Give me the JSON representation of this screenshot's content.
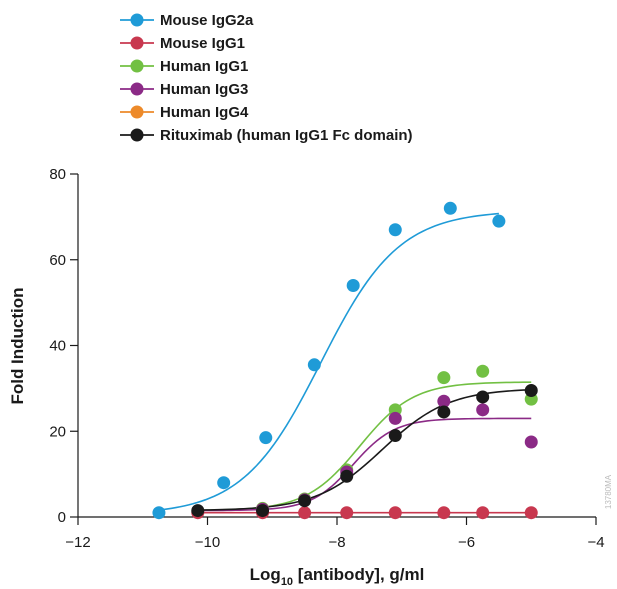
{
  "chart_data": {
    "type": "scatter",
    "xlabel": "Log",
    "xlabel_sub": "10",
    "xlabel_rest": " [antibody], g/ml",
    "ylabel": "Fold Induction",
    "xlim": [
      -12,
      -4
    ],
    "ylim": [
      0,
      80
    ],
    "xticks": [
      -12,
      -10,
      -8,
      -6,
      -4
    ],
    "xtick_labels": [
      "−12",
      "−10",
      "−8",
      "−6",
      "−4"
    ],
    "yticks": [
      0,
      20,
      40,
      60,
      80
    ],
    "ytick_labels": [
      "0",
      "20",
      "40",
      "60",
      "80"
    ],
    "grid": false,
    "legend_position": "top-left",
    "watermark": "13780MA",
    "series": [
      {
        "name": "Mouse IgG2a",
        "color": "#1f9bd7",
        "points": [
          [
            -10.75,
            1
          ],
          [
            -9.75,
            8
          ],
          [
            -9.1,
            18.5
          ],
          [
            -8.35,
            35.5
          ],
          [
            -7.75,
            54
          ],
          [
            -7.1,
            67
          ],
          [
            -6.25,
            72
          ],
          [
            -5.5,
            69
          ]
        ],
        "curve": {
          "bottom": 0.5,
          "top": 71.5,
          "log_ec50": -8.25,
          "hill": 0.72,
          "x_from": -10.75,
          "x_to": -5.5
        }
      },
      {
        "name": "Mouse IgG1",
        "color": "#c8384f",
        "points": [
          [
            -10.15,
            1
          ],
          [
            -9.15,
            1
          ],
          [
            -8.5,
            1
          ],
          [
            -7.85,
            1
          ],
          [
            -7.1,
            1
          ],
          [
            -6.35,
            1
          ],
          [
            -5.75,
            1
          ],
          [
            -5,
            1
          ]
        ],
        "curve": {
          "bottom": 1,
          "top": 1,
          "log_ec50": -8,
          "hill": 1,
          "x_from": -10.15,
          "x_to": -5
        }
      },
      {
        "name": "Human IgG1",
        "color": "#72c043",
        "points": [
          [
            -9.15,
            2
          ],
          [
            -8.5,
            4.2
          ],
          [
            -7.85,
            11
          ],
          [
            -7.1,
            25
          ],
          [
            -6.35,
            32.5
          ],
          [
            -5.75,
            34
          ],
          [
            -5,
            27.5
          ]
        ],
        "curve": {
          "bottom": 1.5,
          "top": 31.5,
          "log_ec50": -7.65,
          "hill": 1.05,
          "x_from": -10.15,
          "x_to": -5
        }
      },
      {
        "name": "Human IgG3",
        "color": "#8b2a86",
        "points": [
          [
            -9.15,
            1.8
          ],
          [
            -8.5,
            4
          ],
          [
            -7.85,
            10.5
          ],
          [
            -7.1,
            23
          ],
          [
            -6.35,
            27
          ],
          [
            -5.75,
            25
          ],
          [
            -5,
            17.5
          ]
        ],
        "curve": {
          "bottom": 1.5,
          "top": 23,
          "log_ec50": -7.75,
          "hill": 1.35,
          "x_from": -10.15,
          "x_to": -5
        }
      },
      {
        "name": "Human IgG4",
        "color": "#ed8a2a",
        "points": [],
        "curve": null
      },
      {
        "name": "Rituximab (human IgG1 Fc domain)",
        "color": "#1a1a1a",
        "points": [
          [
            -10.15,
            1.5
          ],
          [
            -9.15,
            1.5
          ],
          [
            -8.5,
            3.8
          ],
          [
            -7.85,
            9.5
          ],
          [
            -7.1,
            19
          ],
          [
            -6.35,
            24.5
          ],
          [
            -5.75,
            28
          ],
          [
            -5,
            29.5
          ]
        ],
        "curve": {
          "bottom": 1.5,
          "top": 30,
          "log_ec50": -7.3,
          "hill": 0.85,
          "x_from": -10.15,
          "x_to": -5
        }
      }
    ]
  }
}
